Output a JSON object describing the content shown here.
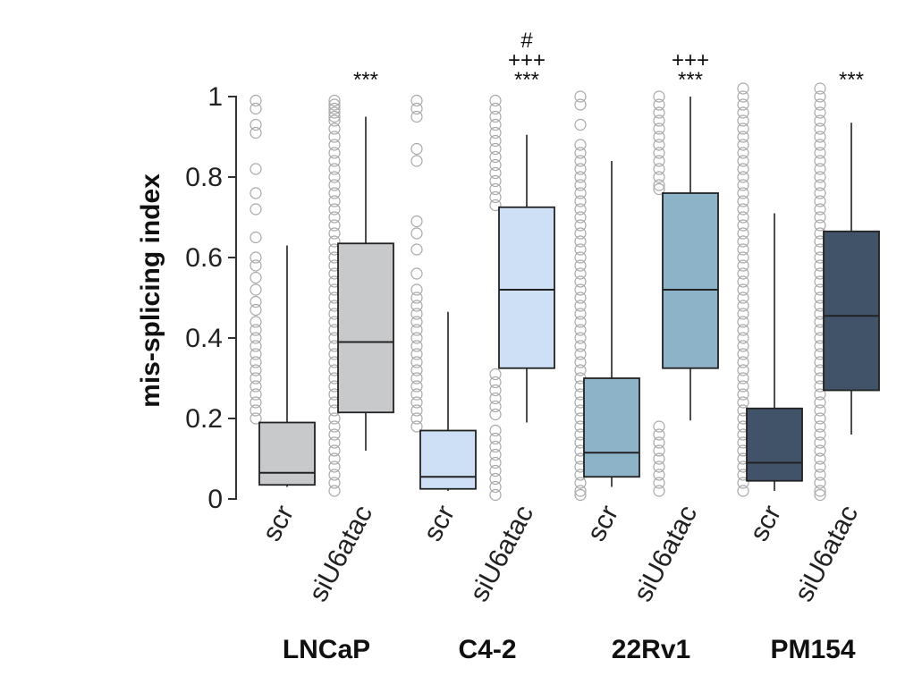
{
  "chart_data": {
    "type": "box",
    "ylabel": "mis-splicing index",
    "ylim": [
      0,
      1
    ],
    "yticks": [
      "0",
      "0.2",
      "0.4",
      "0.6",
      "0.8",
      "1"
    ],
    "group_labels": [
      "LNCaP",
      "C4-2",
      "22Rv1",
      "PM154"
    ],
    "categories": [
      "scr",
      "siU6atac",
      "scr",
      "siU6atac",
      "scr",
      "siU6atac",
      "scr",
      "siU6atac"
    ],
    "boxes": [
      {
        "group": "LNCaP",
        "category": "scr",
        "whisker_low": 0.03,
        "q1": 0.035,
        "median": 0.065,
        "q3": 0.19,
        "whisker_high": 0.63,
        "color": "#c8c9cb",
        "significance": []
      },
      {
        "group": "LNCaP",
        "category": "siU6atac",
        "whisker_low": 0.12,
        "q1": 0.215,
        "median": 0.39,
        "q3": 0.635,
        "whisker_high": 0.95,
        "color": "#c8c9cb",
        "significance": [
          "***"
        ]
      },
      {
        "group": "C4-2",
        "category": "scr",
        "whisker_low": 0.02,
        "q1": 0.025,
        "median": 0.055,
        "q3": 0.17,
        "whisker_high": 0.465,
        "color": "#cde0f5",
        "significance": []
      },
      {
        "group": "C4-2",
        "category": "siU6atac",
        "whisker_low": 0.19,
        "q1": 0.325,
        "median": 0.52,
        "q3": 0.725,
        "whisker_high": 0.905,
        "color": "#cde0f5",
        "significance": [
          "#",
          "+++",
          "***"
        ]
      },
      {
        "group": "22Rv1",
        "category": "scr",
        "whisker_low": 0.03,
        "q1": 0.055,
        "median": 0.115,
        "q3": 0.3,
        "whisker_high": 0.84,
        "color": "#8db3c8",
        "significance": []
      },
      {
        "group": "22Rv1",
        "category": "siU6atac",
        "whisker_low": 0.195,
        "q1": 0.325,
        "median": 0.52,
        "q3": 0.76,
        "whisker_high": 1.0,
        "color": "#8db3c8",
        "significance": [
          "+++",
          "***"
        ]
      },
      {
        "group": "PM154",
        "category": "scr",
        "whisker_low": 0.02,
        "q1": 0.045,
        "median": 0.09,
        "q3": 0.225,
        "whisker_high": 0.71,
        "color": "#415368",
        "significance": []
      },
      {
        "group": "PM154",
        "category": "siU6atac",
        "whisker_low": 0.16,
        "q1": 0.27,
        "median": 0.455,
        "q3": 0.665,
        "whisker_high": 0.935,
        "color": "#415368",
        "significance": [
          "***"
        ]
      }
    ],
    "outliers": [
      [
        0.99,
        0.97,
        0.93,
        0.91,
        0.82,
        0.76,
        0.72,
        0.65,
        0.6,
        0.58,
        0.55,
        0.52,
        0.49,
        0.47,
        0.44,
        0.42,
        0.4,
        0.38,
        0.36,
        0.34,
        0.32,
        0.3,
        0.28,
        0.26,
        0.24,
        0.22,
        0.2
      ],
      [
        0.99,
        0.98,
        0.97,
        0.96,
        0.95,
        0.94,
        0.92,
        0.9,
        0.88,
        0.86,
        0.84,
        0.82,
        0.8,
        0.78,
        0.76,
        0.74,
        0.72,
        0.7,
        0.68,
        0.66,
        0.64,
        0.62,
        0.6,
        0.58,
        0.56,
        0.54,
        0.52,
        0.5,
        0.48,
        0.46,
        0.44,
        0.42,
        0.4,
        0.38,
        0.36,
        0.34,
        0.32,
        0.3,
        0.28,
        0.26,
        0.24,
        0.22,
        0.2,
        0.18,
        0.16,
        0.14,
        0.12,
        0.1,
        0.08,
        0.06,
        0.04,
        0.02
      ],
      [
        0.99,
        0.97,
        0.95,
        0.87,
        0.84,
        0.69,
        0.66,
        0.62,
        0.56,
        0.52,
        0.5,
        0.48,
        0.46,
        0.44,
        0.42,
        0.4,
        0.38,
        0.36,
        0.34,
        0.32,
        0.3,
        0.28,
        0.26,
        0.24,
        0.22,
        0.2,
        0.18
      ],
      [
        0.99,
        0.97,
        0.95,
        0.93,
        0.91,
        0.89,
        0.87,
        0.85,
        0.83,
        0.81,
        0.79,
        0.77,
        0.75,
        0.73,
        0.31,
        0.29,
        0.27,
        0.25,
        0.23,
        0.21,
        0.17,
        0.15,
        0.13,
        0.11,
        0.09,
        0.07,
        0.05,
        0.03,
        0.01
      ],
      [
        1.0,
        0.98,
        0.93,
        0.88,
        0.86,
        0.84,
        0.82,
        0.8,
        0.78,
        0.76,
        0.74,
        0.72,
        0.7,
        0.68,
        0.66,
        0.64,
        0.62,
        0.6,
        0.58,
        0.56,
        0.54,
        0.52,
        0.5,
        0.48,
        0.46,
        0.44,
        0.42,
        0.4,
        0.38,
        0.36,
        0.34,
        0.32,
        0.3,
        0.28,
        0.26,
        0.24,
        0.22,
        0.2,
        0.18,
        0.16,
        0.14,
        0.12,
        0.1,
        0.08,
        0.06,
        0.04,
        0.02,
        0.01
      ],
      [
        1.0,
        0.98,
        0.96,
        0.94,
        0.92,
        0.9,
        0.88,
        0.86,
        0.84,
        0.82,
        0.8,
        0.78,
        0.77,
        0.18,
        0.16,
        0.14,
        0.12,
        0.1,
        0.08,
        0.06,
        0.04,
        0.02
      ],
      [
        1.02,
        1.0,
        0.98,
        0.96,
        0.94,
        0.92,
        0.9,
        0.88,
        0.86,
        0.84,
        0.82,
        0.8,
        0.78,
        0.76,
        0.74,
        0.72,
        0.7,
        0.68,
        0.66,
        0.64,
        0.62,
        0.6,
        0.58,
        0.56,
        0.54,
        0.52,
        0.5,
        0.48,
        0.46,
        0.44,
        0.42,
        0.4,
        0.38,
        0.36,
        0.34,
        0.32,
        0.3,
        0.28,
        0.26,
        0.24,
        0.22,
        0.2,
        0.18,
        0.16,
        0.14,
        0.12,
        0.1,
        0.08,
        0.06,
        0.04,
        0.02
      ],
      [
        1.02,
        1.0,
        0.98,
        0.96,
        0.94,
        0.92,
        0.9,
        0.88,
        0.86,
        0.84,
        0.82,
        0.8,
        0.78,
        0.76,
        0.74,
        0.72,
        0.7,
        0.68,
        0.66,
        0.64,
        0.62,
        0.6,
        0.58,
        0.56,
        0.54,
        0.52,
        0.5,
        0.48,
        0.46,
        0.44,
        0.42,
        0.4,
        0.38,
        0.36,
        0.34,
        0.32,
        0.3,
        0.28,
        0.26,
        0.24,
        0.22,
        0.2,
        0.18,
        0.16,
        0.14,
        0.12,
        0.1,
        0.08,
        0.06,
        0.04,
        0.02,
        0.01
      ]
    ],
    "grid": false,
    "legend": "none"
  }
}
